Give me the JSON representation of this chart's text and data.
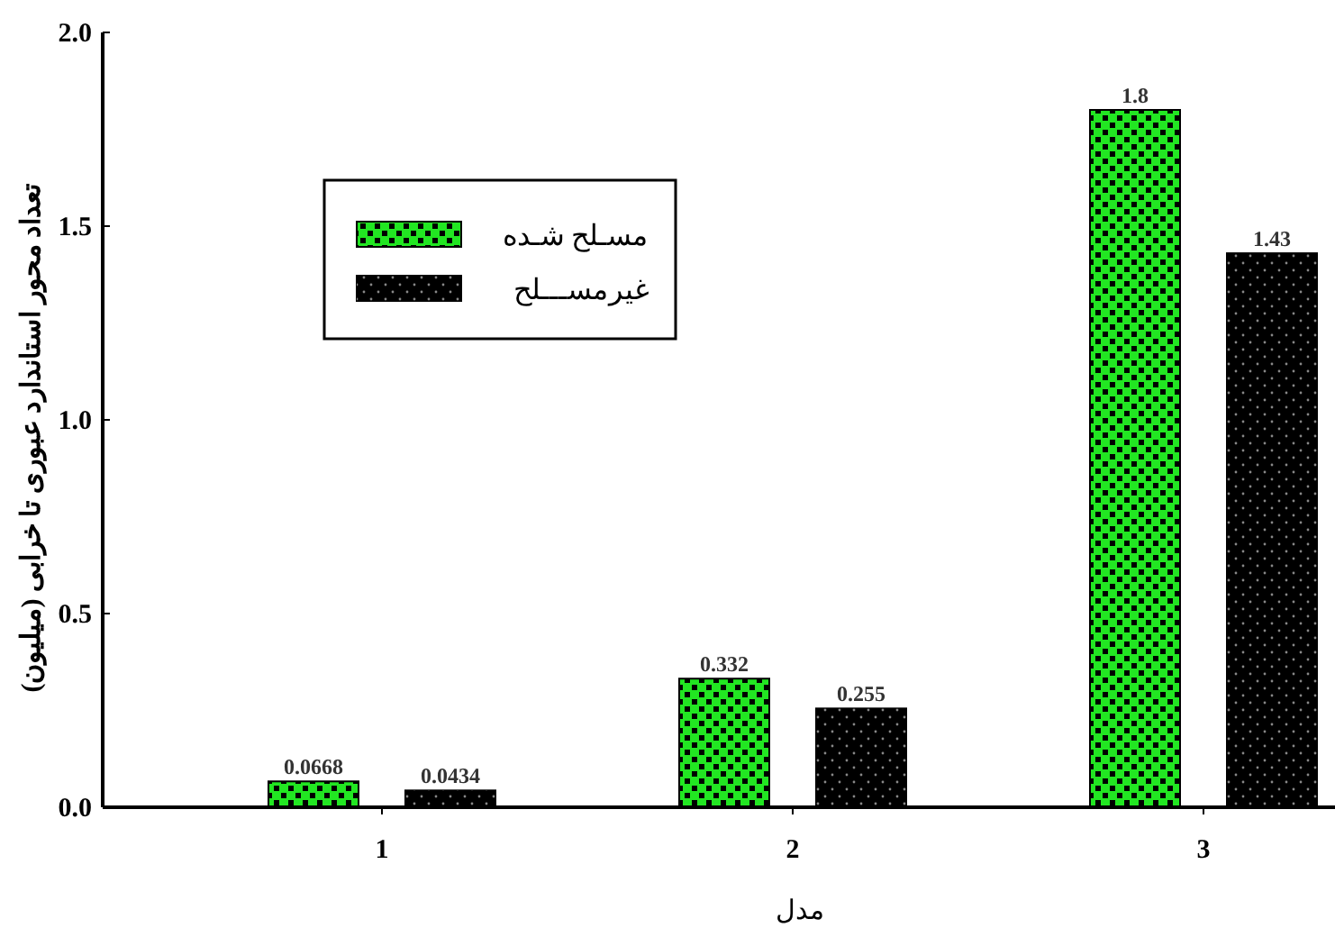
{
  "chart_data": {
    "type": "bar",
    "xlabel": "مدل",
    "ylabel": "تعداد محور استاندارد عبوری تا خرابی (میلیون)",
    "categories": [
      "1",
      "2",
      "3"
    ],
    "series": [
      {
        "name": "مسـلح شـده",
        "color": "#22e622",
        "values": [
          0.0668,
          0.332,
          1.8
        ]
      },
      {
        "name": "غیرمســـلح",
        "color": "#000000",
        "values": [
          0.0434,
          0.255,
          1.43
        ]
      }
    ],
    "ylim": [
      0,
      2
    ],
    "yticks": [
      {
        "value": 0,
        "label": "0.0"
      },
      {
        "value": 0.5,
        "label": "0.5"
      },
      {
        "value": 1,
        "label": "1.0"
      },
      {
        "value": 1.5,
        "label": "1.5"
      },
      {
        "value": 2,
        "label": "2.0"
      }
    ],
    "data_labels": true,
    "legend": "top left",
    "grid": false
  }
}
